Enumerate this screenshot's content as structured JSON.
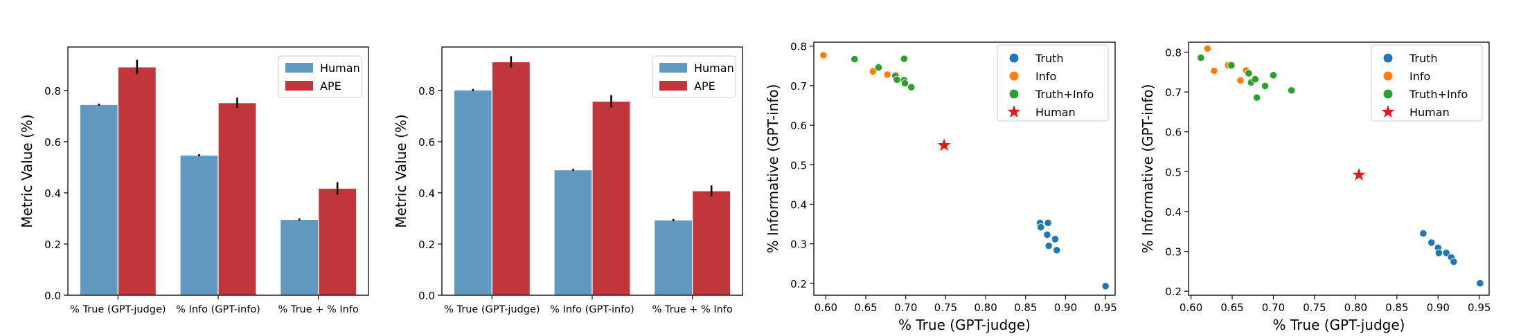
{
  "figure": {
    "panels": 4,
    "colors": {
      "human_bar": "#6199c0",
      "ape_bar": "#c0363b",
      "truth": "#1f77b4",
      "info": "#ff7f0e",
      "truth_info": "#2ca02c",
      "human_star": "#e31a1c"
    }
  },
  "chart_data": [
    {
      "type": "bar",
      "title": "",
      "xlabel": "",
      "ylabel": "Metric Value (%)",
      "categories": [
        "% True (GPT-judge)",
        "% Info (GPT-info)",
        "% True + % Info"
      ],
      "ylim": [
        0,
        0.97
      ],
      "yticks": [
        0.0,
        0.2,
        0.4,
        0.6,
        0.8
      ],
      "ytick_labels": [
        "0.0",
        "0.2",
        "0.4",
        "0.6",
        "0.8"
      ],
      "legend_position": "top-right",
      "series": [
        {
          "name": "Human",
          "color": "#6199c0",
          "values": [
            0.745,
            0.547,
            0.296
          ],
          "errors": [
            0.004,
            0.004,
            0.004
          ]
        },
        {
          "name": "APE",
          "color": "#c0363b",
          "values": [
            0.892,
            0.752,
            0.418
          ],
          "errors": [
            0.028,
            0.02,
            0.024
          ]
        }
      ]
    },
    {
      "type": "bar",
      "title": "",
      "xlabel": "",
      "ylabel": "Metric Value (%)",
      "categories": [
        "% True (GPT-judge)",
        "% Info (GPT-info)",
        "% True + % Info"
      ],
      "ylim": [
        0,
        0.97
      ],
      "yticks": [
        0.0,
        0.2,
        0.4,
        0.6,
        0.8
      ],
      "ytick_labels": [
        "0.0",
        "0.2",
        "0.4",
        "0.6",
        "0.8"
      ],
      "legend_position": "top-right",
      "series": [
        {
          "name": "Human",
          "color": "#6199c0",
          "values": [
            0.802,
            0.49,
            0.294
          ],
          "errors": [
            0.004,
            0.004,
            0.004
          ]
        },
        {
          "name": "APE",
          "color": "#c0363b",
          "values": [
            0.912,
            0.758,
            0.408
          ],
          "errors": [
            0.022,
            0.024,
            0.021
          ]
        }
      ]
    },
    {
      "type": "scatter",
      "title": "",
      "xlabel": "% True (GPT-judge)",
      "ylabel": "% Informative (GPT-info)",
      "xlim": [
        0.585,
        0.962
      ],
      "ylim": [
        0.17,
        0.81
      ],
      "xticks": [
        0.6,
        0.65,
        0.7,
        0.75,
        0.8,
        0.85,
        0.9,
        0.95
      ],
      "xtick_labels": [
        "0.60",
        "0.65",
        "0.70",
        "0.75",
        "0.80",
        "0.85",
        "0.90",
        "0.95"
      ],
      "yticks": [
        0.2,
        0.3,
        0.4,
        0.5,
        0.6,
        0.7,
        0.8
      ],
      "ytick_labels": [
        "0.2",
        "0.3",
        "0.4",
        "0.5",
        "0.6",
        "0.7",
        "0.8"
      ],
      "legend_position": "top-right",
      "series": [
        {
          "name": "Truth",
          "color": "#1f77b4",
          "marker": "circle",
          "x": [
            0.868,
            0.869,
            0.878,
            0.877,
            0.887,
            0.879,
            0.889,
            0.95
          ],
          "y": [
            0.353,
            0.342,
            0.353,
            0.323,
            0.312,
            0.295,
            0.284,
            0.193
          ]
        },
        {
          "name": "Info",
          "color": "#ff7f0e",
          "marker": "circle",
          "x": [
            0.597,
            0.659,
            0.677,
            0.688
          ],
          "y": [
            0.777,
            0.736,
            0.728,
            0.727
          ]
        },
        {
          "name": "Truth+Info",
          "color": "#2ca02c",
          "marker": "circle",
          "x": [
            0.636,
            0.666,
            0.687,
            0.698,
            0.698,
            0.689,
            0.699,
            0.707
          ],
          "y": [
            0.767,
            0.746,
            0.725,
            0.768,
            0.714,
            0.715,
            0.706,
            0.696
          ]
        },
        {
          "name": "Human",
          "color": "#e31a1c",
          "marker": "star",
          "x": [
            0.748
          ],
          "y": [
            0.549
          ]
        }
      ]
    },
    {
      "type": "scatter",
      "title": "",
      "xlabel": "% True (GPT-judge)",
      "ylabel": "% Informative (GPT-info)",
      "xlim": [
        0.597,
        0.962
      ],
      "ylim": [
        0.19,
        0.825
      ],
      "xticks": [
        0.6,
        0.65,
        0.7,
        0.75,
        0.8,
        0.85,
        0.9,
        0.95
      ],
      "xtick_labels": [
        "0.60",
        "0.65",
        "0.70",
        "0.75",
        "0.80",
        "0.85",
        "0.90",
        "0.95"
      ],
      "yticks": [
        0.2,
        0.3,
        0.4,
        0.5,
        0.6,
        0.7,
        0.8
      ],
      "ytick_labels": [
        "0.2",
        "0.3",
        "0.4",
        "0.5",
        "0.6",
        "0.7",
        "0.8"
      ],
      "legend_position": "top-right",
      "series": [
        {
          "name": "Truth",
          "color": "#1f77b4",
          "marker": "circle",
          "x": [
            0.882,
            0.892,
            0.9,
            0.901,
            0.91,
            0.916,
            0.919,
            0.951
          ],
          "y": [
            0.345,
            0.322,
            0.309,
            0.296,
            0.296,
            0.285,
            0.274,
            0.22
          ]
        },
        {
          "name": "Info",
          "color": "#ff7f0e",
          "marker": "circle",
          "x": [
            0.613,
            0.62,
            0.628,
            0.645,
            0.65,
            0.66,
            0.667,
            0.67
          ],
          "y": [
            0.786,
            0.809,
            0.753,
            0.767,
            0.767,
            0.729,
            0.754,
            0.745
          ]
        },
        {
          "name": "Truth+Info",
          "color": "#2ca02c",
          "marker": "circle",
          "x": [
            0.612,
            0.649,
            0.67,
            0.673,
            0.678,
            0.68,
            0.69,
            0.7,
            0.722
          ],
          "y": [
            0.786,
            0.767,
            0.747,
            0.724,
            0.732,
            0.686,
            0.715,
            0.742,
            0.704
          ]
        },
        {
          "name": "Human",
          "color": "#e31a1c",
          "marker": "star",
          "x": [
            0.804
          ],
          "y": [
            0.492
          ]
        }
      ]
    }
  ]
}
